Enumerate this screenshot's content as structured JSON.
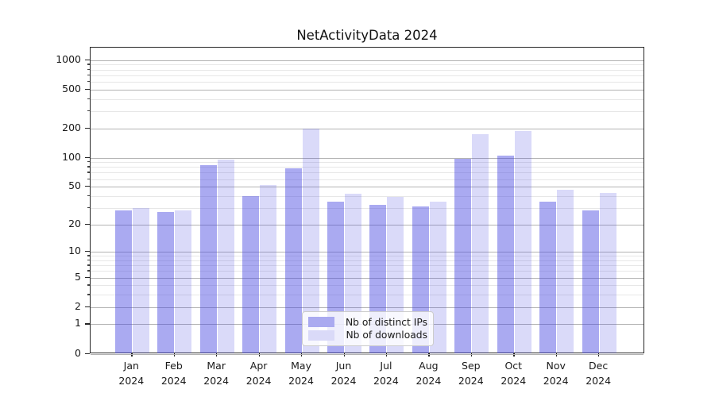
{
  "chart_data": {
    "type": "bar",
    "title": "NetActivityData 2024",
    "categories": [
      "Jan 2024",
      "Feb 2024",
      "Mar 2024",
      "Apr 2024",
      "May 2024",
      "Jun 2024",
      "Jul 2024",
      "Aug 2024",
      "Sep 2024",
      "Oct 2024",
      "Nov 2024",
      "Dec 2024"
    ],
    "series": [
      {
        "name": "Nb of distinct IPs",
        "color": "rgba(70,70,225,0.46)",
        "solid_color": "#aaaaf0",
        "values": [
          28,
          27,
          83,
          40,
          77,
          35,
          32,
          31,
          98,
          105,
          35,
          28
        ]
      },
      {
        "name": "Nb of downloads",
        "color": "rgba(70,70,225,0.20)",
        "solid_color": "#dadaf8",
        "values": [
          30,
          28,
          96,
          52,
          200,
          42,
          39,
          35,
          175,
          188,
          46,
          43
        ]
      }
    ],
    "xlabel": "",
    "ylabel": "",
    "yscale": "log1p",
    "ylim": [
      0,
      1345
    ],
    "y_major_ticks": [
      0,
      1,
      2,
      5,
      10,
      20,
      50,
      100,
      200,
      500,
      1000
    ],
    "y_minor_ticks": [
      3,
      4,
      6,
      7,
      8,
      9,
      30,
      40,
      60,
      70,
      80,
      90,
      300,
      400,
      600,
      700,
      800,
      900
    ],
    "grid": "horizontal",
    "legend_position": "lower-center",
    "colors": {
      "major_grid": "#b3b3b3",
      "minor_grid": "#e7e7e7",
      "spine": "#262626",
      "text": "#1a1a1a"
    }
  }
}
